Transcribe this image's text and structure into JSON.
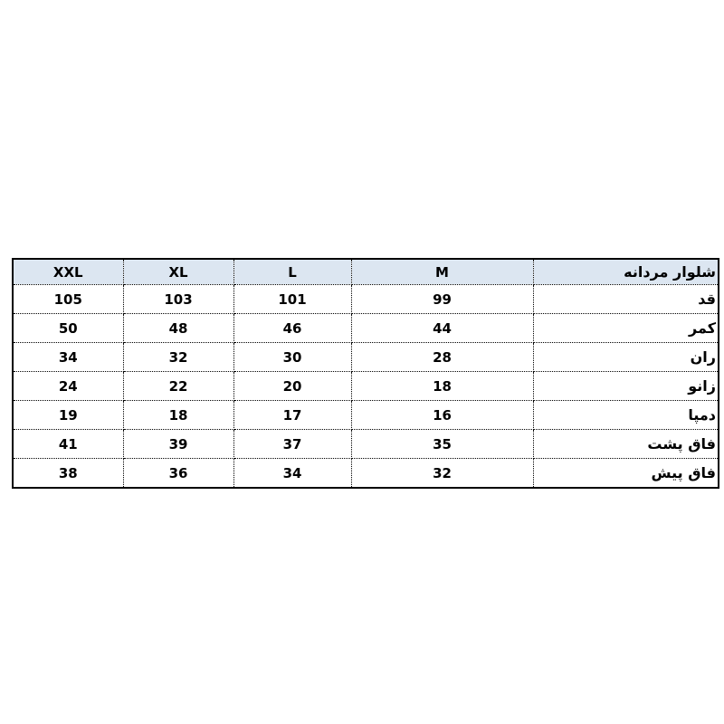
{
  "chart_data": {
    "type": "table",
    "title": "شلوار مردانه",
    "header": {
      "sizes": [
        "XXL",
        "XL",
        "L",
        "M"
      ],
      "title": "شلوار مردانه"
    },
    "rows": [
      {
        "label": "قد",
        "values": [
          "105",
          "103",
          "101",
          "99"
        ]
      },
      {
        "label": "کمر",
        "values": [
          "50",
          "48",
          "46",
          "44"
        ]
      },
      {
        "label": "ران",
        "values": [
          "34",
          "32",
          "30",
          "28"
        ]
      },
      {
        "label": "زانو",
        "values": [
          "24",
          "22",
          "20",
          "18"
        ]
      },
      {
        "label": "دمپا",
        "values": [
          "19",
          "18",
          "17",
          "16"
        ]
      },
      {
        "label": "فاق پشت",
        "values": [
          "41",
          "39",
          "37",
          "35"
        ]
      },
      {
        "label": "فاق پیش",
        "values": [
          "38",
          "36",
          "34",
          "32"
        ]
      }
    ],
    "layout_hints": {
      "column_order_left_to_right": [
        "XXL",
        "XL",
        "L",
        "M",
        "row-label"
      ],
      "grid": "dotted inner lines, solid outer frame"
    }
  },
  "colors": {
    "header_bg": "#dce6f1",
    "border": "#000000",
    "text": "#000000",
    "page_bg": "#ffffff"
  }
}
